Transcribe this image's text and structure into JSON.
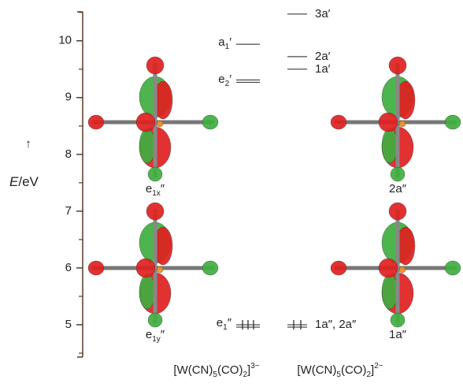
{
  "axis": {
    "label_italic": "E",
    "label_rest": "/eV",
    "range": [
      4.43,
      10.51
    ],
    "ticks": [
      5,
      6,
      7,
      8,
      9,
      10
    ],
    "minor_ticks": [
      4.5,
      5.5,
      6.5,
      7.5,
      8.5,
      9.5,
      10.5
    ]
  },
  "columns": [
    {
      "formula": [
        "[W(CN)",
        "5",
        "(CO)",
        "2",
        "]",
        "3−"
      ],
      "levels": [
        {
          "label": "a",
          "sub": "1",
          "prime": "′",
          "energy": 9.94
        },
        {
          "label": "e",
          "sub": "2",
          "prime": "′",
          "energy": 9.29,
          "degenerate": true
        },
        {
          "label": "e",
          "sub": "1",
          "prime": "″",
          "energy": 5.0,
          "degenerate": true,
          "occupied": true
        }
      ]
    },
    {
      "formula": [
        "[W(CN)",
        "5",
        "(CO)",
        "2",
        "]",
        "2−"
      ],
      "levels": [
        {
          "label": "3a′",
          "energy": 10.47
        },
        {
          "label": "2a′",
          "energy": 9.72
        },
        {
          "label": "1a′",
          "energy": 9.5
        },
        {
          "label": "1a″, 2a″",
          "energy": 5.0,
          "occupied": true
        }
      ]
    }
  ],
  "orbitals": [
    {
      "label": "e",
      "sub": "1x",
      "prime": "″"
    },
    {
      "label": "2a″"
    },
    {
      "label": "e",
      "sub": "1y",
      "prime": "″"
    },
    {
      "label": "1a″"
    }
  ]
}
